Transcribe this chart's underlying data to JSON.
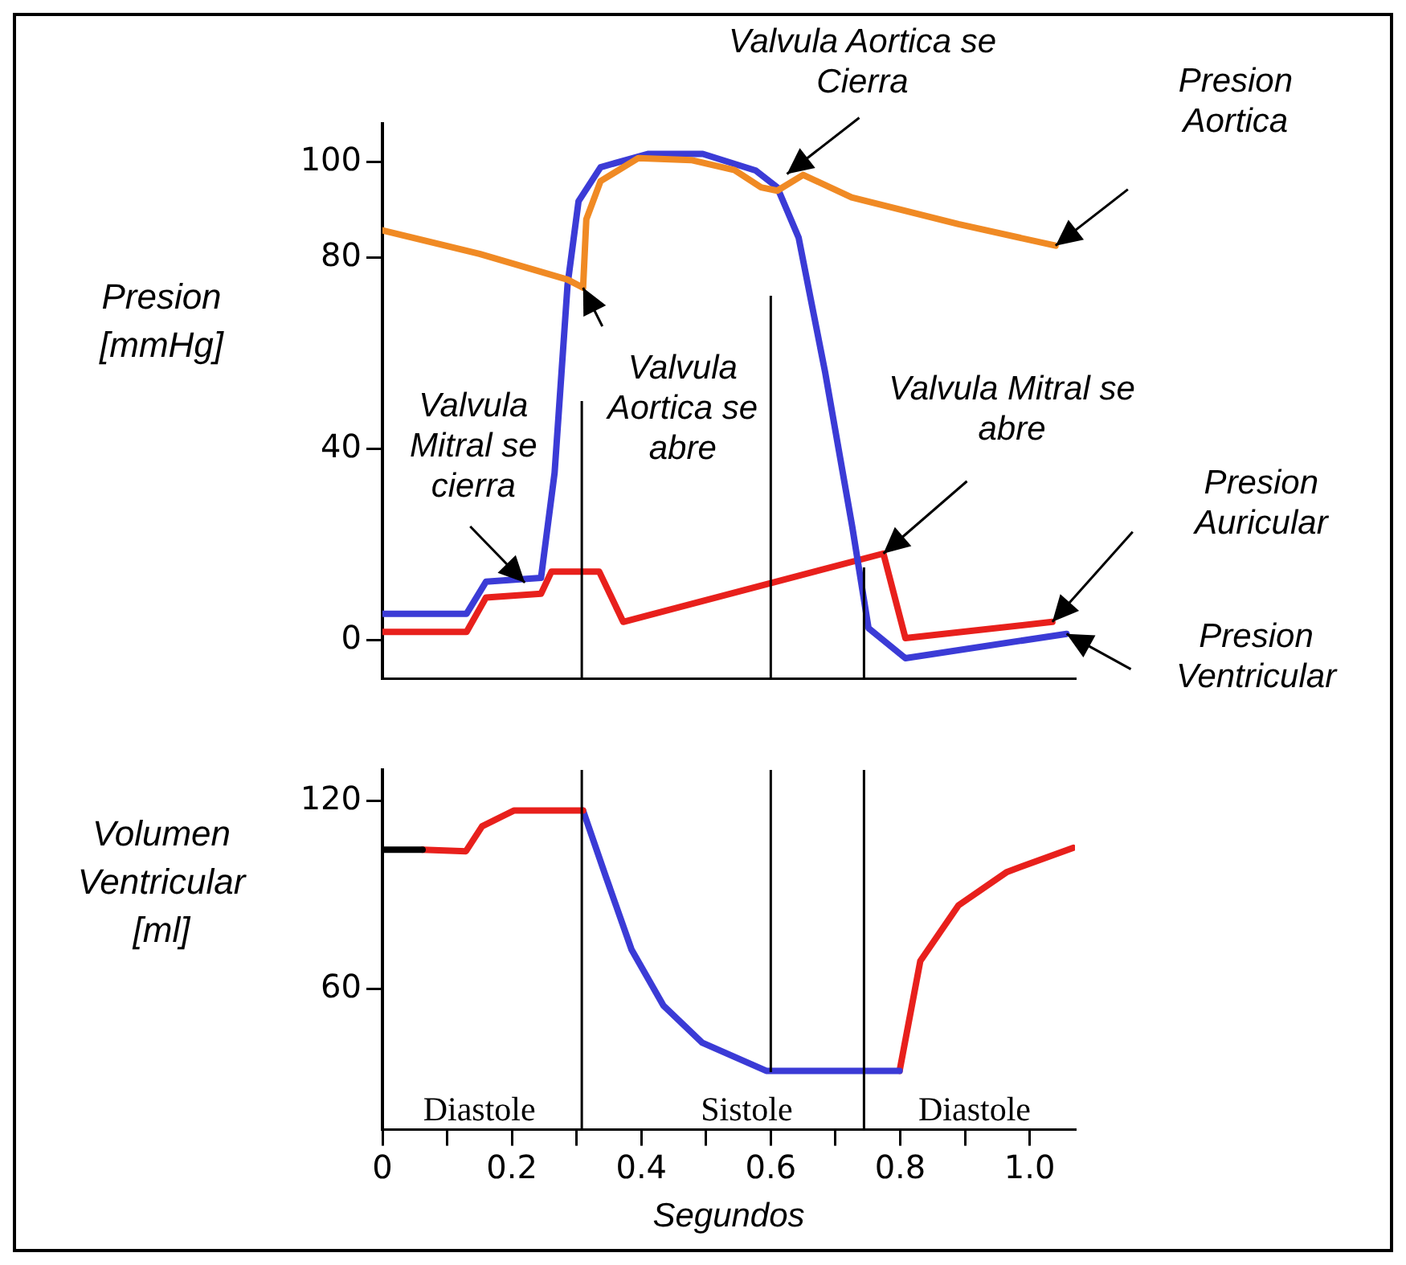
{
  "chart_data": [
    {
      "type": "line",
      "ylabel": "Presion [mmHg]",
      "xlim": [
        0,
        1.07
      ],
      "xticks": [
        0,
        0.2,
        0.4,
        0.6,
        0.8,
        1
      ],
      "ylim": [
        -8,
        108
      ],
      "yticks": [
        0,
        40,
        80,
        100
      ],
      "tick_labels": "y",
      "series": [
        {
          "name": "Presion Aortica",
          "color": "#f08a24",
          "x": [
            0,
            0.15,
            0.286,
            0.31,
            0.315,
            0.337,
            0.395,
            0.477,
            0.544,
            0.585,
            0.61,
            0.65,
            0.725,
            0.89,
            1.04
          ],
          "values": [
            85.7,
            80.8,
            75.4,
            73.7,
            88,
            96,
            100.8,
            100.4,
            98.3,
            94.7,
            94,
            97.3,
            92.6,
            87,
            82.5
          ]
        },
        {
          "name": "Presion Ventricular",
          "color": "#3b3bd6",
          "x": [
            0,
            0.13,
            0.16,
            0.245,
            0.266,
            0.286,
            0.303,
            0.337,
            0.41,
            0.495,
            0.577,
            0.61,
            0.643,
            0.684,
            0.726,
            0.751,
            0.808,
            1.057
          ],
          "values": [
            5.5,
            5.5,
            12.2,
            13,
            35,
            74.3,
            91.8,
            98.9,
            101.7,
            101.7,
            98.2,
            94.7,
            84.2,
            56,
            23.6,
            2.5,
            -3.8,
            1.3
          ]
        },
        {
          "name": "Presion Auricular",
          "color": "#e8201c",
          "x": [
            0,
            0.13,
            0.16,
            0.245,
            0.261,
            0.335,
            0.372,
            0.774,
            0.808,
            1.035
          ],
          "values": [
            1.7,
            1.7,
            8.9,
            9.7,
            14.3,
            14.3,
            3.8,
            18.1,
            0.4,
            3.8
          ]
        }
      ],
      "ref_lines": [
        {
          "axis": "x",
          "value": 0.308,
          "color": "#000000"
        },
        {
          "axis": "x",
          "value": 0.6,
          "color": "#000000"
        },
        {
          "axis": "x",
          "value": 0.744,
          "color": "#000000"
        }
      ],
      "annotations": [
        {
          "text": "Valvula Aortica se Cierra",
          "x": 0.625,
          "y": 97.5
        },
        {
          "text": "Valvula Mitral se cierra",
          "x": 0.22,
          "y": 12
        },
        {
          "text": "Valvula Aortica se abre",
          "x": 0.31,
          "y": 73.7
        },
        {
          "text": "Valvula Mitral se abre",
          "x": 0.774,
          "y": 18.1
        }
      ]
    },
    {
      "type": "line",
      "ylabel": "Volumen Ventricular [ml]",
      "xlabel": "Segundos",
      "xlim": [
        0,
        1.07
      ],
      "ylim": [
        15,
        130
      ],
      "yticks": [
        60,
        120
      ],
      "xticks": [
        0,
        {
          "value": 0.1,
          "label": null
        },
        0.2,
        {
          "value": 0.3,
          "label": null
        },
        0.4,
        {
          "value": 0.5,
          "label": null
        },
        0.6,
        {
          "value": 0.7,
          "label": null
        },
        0.8,
        {
          "value": 0.9,
          "label": null
        },
        {
          "value": 1,
          "label": "1.0"
        }
      ],
      "series": [
        {
          "color": "#000000",
          "x": [
            0,
            0.062
          ],
          "values": [
            104.5,
            104.5
          ]
        },
        {
          "color": "#e8201c",
          "x": [
            0.062,
            0.129,
            0.154,
            0.203,
            0.31
          ],
          "values": [
            104.5,
            104,
            112,
            117,
            117
          ]
        },
        {
          "color": "#3b3bd6",
          "x": [
            0.31,
            0.345,
            0.385,
            0.434,
            0.494,
            0.593,
            0.799
          ],
          "values": [
            117,
            96,
            72.5,
            54.7,
            42.8,
            33.8,
            33.8
          ]
        },
        {
          "color": "#e8201c",
          "x": [
            0.799,
            0.831,
            0.89,
            0.965,
            1.067
          ],
          "values": [
            33.8,
            68.9,
            86.7,
            97.4,
            105.1
          ]
        }
      ],
      "ref_lines": [
        {
          "axis": "x",
          "value": 0.308,
          "color": "#000000"
        },
        {
          "axis": "x",
          "value": 0.6,
          "color": "#000000"
        },
        {
          "axis": "x",
          "value": 0.744,
          "color": "#000000"
        }
      ],
      "annotations": [
        "Diastole",
        "Sistole",
        "Diastole"
      ]
    }
  ]
}
